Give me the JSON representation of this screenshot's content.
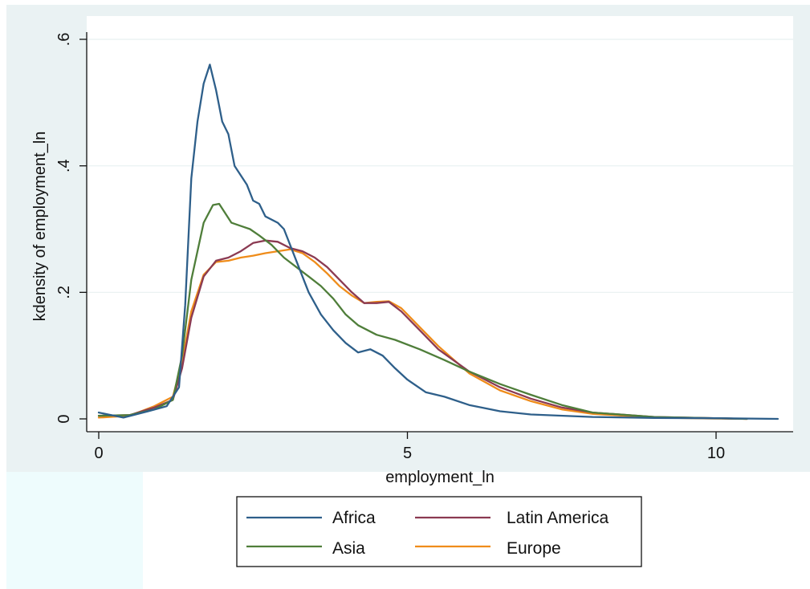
{
  "chart_data": {
    "type": "line",
    "xlabel": "employment_ln",
    "ylabel": "kdensity of employment_ln",
    "xlim": [
      0,
      11
    ],
    "ylim": [
      0,
      0.6
    ],
    "x_ticks": [
      {
        "value": 0,
        "label": "0"
      },
      {
        "value": 5,
        "label": "5"
      },
      {
        "value": 10,
        "label": "10"
      }
    ],
    "y_ticks": [
      {
        "value": 0,
        "label": "0"
      },
      {
        "value": 0.2,
        "label": ".2"
      },
      {
        "value": 0.4,
        "label": ".4"
      },
      {
        "value": 0.6,
        "label": ".6"
      }
    ],
    "grid": true,
    "legend_position": "bottom",
    "colors": {
      "plot_region_bg": "#eaf2f3",
      "grid": "#ffffff",
      "legend_bg": "#ffffff"
    },
    "series": [
      {
        "name": "Africa",
        "color": "#2e5f8a",
        "points": [
          [
            0.0,
            0.01
          ],
          [
            0.4,
            0.002
          ],
          [
            0.8,
            0.012
          ],
          [
            1.1,
            0.02
          ],
          [
            1.3,
            0.05
          ],
          [
            1.4,
            0.18
          ],
          [
            1.5,
            0.38
          ],
          [
            1.6,
            0.47
          ],
          [
            1.7,
            0.53
          ],
          [
            1.8,
            0.56
          ],
          [
            1.9,
            0.52
          ],
          [
            2.0,
            0.47
          ],
          [
            2.1,
            0.45
          ],
          [
            2.2,
            0.4
          ],
          [
            2.4,
            0.37
          ],
          [
            2.5,
            0.345
          ],
          [
            2.6,
            0.34
          ],
          [
            2.7,
            0.32
          ],
          [
            2.9,
            0.31
          ],
          [
            3.0,
            0.3
          ],
          [
            3.2,
            0.25
          ],
          [
            3.4,
            0.2
          ],
          [
            3.6,
            0.165
          ],
          [
            3.8,
            0.14
          ],
          [
            4.0,
            0.12
          ],
          [
            4.2,
            0.105
          ],
          [
            4.4,
            0.11
          ],
          [
            4.6,
            0.1
          ],
          [
            4.8,
            0.08
          ],
          [
            5.0,
            0.062
          ],
          [
            5.3,
            0.042
          ],
          [
            5.6,
            0.035
          ],
          [
            6.0,
            0.022
          ],
          [
            6.5,
            0.012
          ],
          [
            7.0,
            0.007
          ],
          [
            8.0,
            0.003
          ],
          [
            9.0,
            0.0015
          ],
          [
            10.0,
            0.001
          ],
          [
            11.0,
            0.0
          ]
        ]
      },
      {
        "name": "Latin America",
        "color": "#8b3a52",
        "points": [
          [
            0.0,
            0.005
          ],
          [
            0.5,
            0.006
          ],
          [
            0.9,
            0.018
          ],
          [
            1.2,
            0.03
          ],
          [
            1.35,
            0.08
          ],
          [
            1.5,
            0.16
          ],
          [
            1.7,
            0.225
          ],
          [
            1.9,
            0.25
          ],
          [
            2.1,
            0.255
          ],
          [
            2.3,
            0.265
          ],
          [
            2.5,
            0.278
          ],
          [
            2.7,
            0.282
          ],
          [
            2.9,
            0.28
          ],
          [
            3.1,
            0.27
          ],
          [
            3.3,
            0.265
          ],
          [
            3.5,
            0.255
          ],
          [
            3.7,
            0.24
          ],
          [
            3.9,
            0.22
          ],
          [
            4.1,
            0.2
          ],
          [
            4.3,
            0.183
          ],
          [
            4.5,
            0.183
          ],
          [
            4.7,
            0.185
          ],
          [
            4.9,
            0.17
          ],
          [
            5.2,
            0.14
          ],
          [
            5.5,
            0.11
          ],
          [
            6.0,
            0.075
          ],
          [
            6.5,
            0.05
          ],
          [
            7.0,
            0.032
          ],
          [
            7.5,
            0.018
          ],
          [
            8.0,
            0.01
          ],
          [
            9.0,
            0.003
          ],
          [
            10.0,
            0.001
          ],
          [
            10.5,
            0.0
          ]
        ]
      },
      {
        "name": "Asia",
        "color": "#4f7e3a",
        "points": [
          [
            0.0,
            0.005
          ],
          [
            0.5,
            0.006
          ],
          [
            0.9,
            0.015
          ],
          [
            1.2,
            0.03
          ],
          [
            1.35,
            0.1
          ],
          [
            1.5,
            0.22
          ],
          [
            1.7,
            0.31
          ],
          [
            1.85,
            0.338
          ],
          [
            1.95,
            0.34
          ],
          [
            2.05,
            0.325
          ],
          [
            2.15,
            0.31
          ],
          [
            2.3,
            0.305
          ],
          [
            2.45,
            0.3
          ],
          [
            2.6,
            0.29
          ],
          [
            2.8,
            0.275
          ],
          [
            3.0,
            0.255
          ],
          [
            3.2,
            0.24
          ],
          [
            3.4,
            0.225
          ],
          [
            3.6,
            0.21
          ],
          [
            3.8,
            0.19
          ],
          [
            4.0,
            0.165
          ],
          [
            4.2,
            0.148
          ],
          [
            4.5,
            0.133
          ],
          [
            4.8,
            0.125
          ],
          [
            5.2,
            0.11
          ],
          [
            5.6,
            0.093
          ],
          [
            6.0,
            0.075
          ],
          [
            6.5,
            0.055
          ],
          [
            7.0,
            0.038
          ],
          [
            7.5,
            0.022
          ],
          [
            8.0,
            0.01
          ],
          [
            9.0,
            0.003
          ],
          [
            10.0,
            0.001
          ],
          [
            10.5,
            0.0
          ]
        ]
      },
      {
        "name": "Europe",
        "color": "#ef8c1a",
        "points": [
          [
            0.0,
            0.002
          ],
          [
            0.5,
            0.005
          ],
          [
            0.9,
            0.02
          ],
          [
            1.2,
            0.035
          ],
          [
            1.35,
            0.09
          ],
          [
            1.5,
            0.17
          ],
          [
            1.7,
            0.228
          ],
          [
            1.9,
            0.248
          ],
          [
            2.1,
            0.25
          ],
          [
            2.3,
            0.255
          ],
          [
            2.5,
            0.258
          ],
          [
            2.7,
            0.262
          ],
          [
            2.9,
            0.265
          ],
          [
            3.1,
            0.268
          ],
          [
            3.3,
            0.262
          ],
          [
            3.5,
            0.248
          ],
          [
            3.7,
            0.23
          ],
          [
            3.9,
            0.21
          ],
          [
            4.1,
            0.195
          ],
          [
            4.3,
            0.183
          ],
          [
            4.5,
            0.185
          ],
          [
            4.7,
            0.186
          ],
          [
            4.9,
            0.175
          ],
          [
            5.2,
            0.145
          ],
          [
            5.5,
            0.115
          ],
          [
            6.0,
            0.072
          ],
          [
            6.5,
            0.045
          ],
          [
            7.0,
            0.028
          ],
          [
            7.5,
            0.015
          ],
          [
            8.0,
            0.008
          ],
          [
            9.0,
            0.002
          ],
          [
            10.0,
            0.0005
          ],
          [
            10.5,
            0.0
          ]
        ]
      }
    ],
    "legend_order": [
      0,
      1,
      2,
      3
    ]
  }
}
